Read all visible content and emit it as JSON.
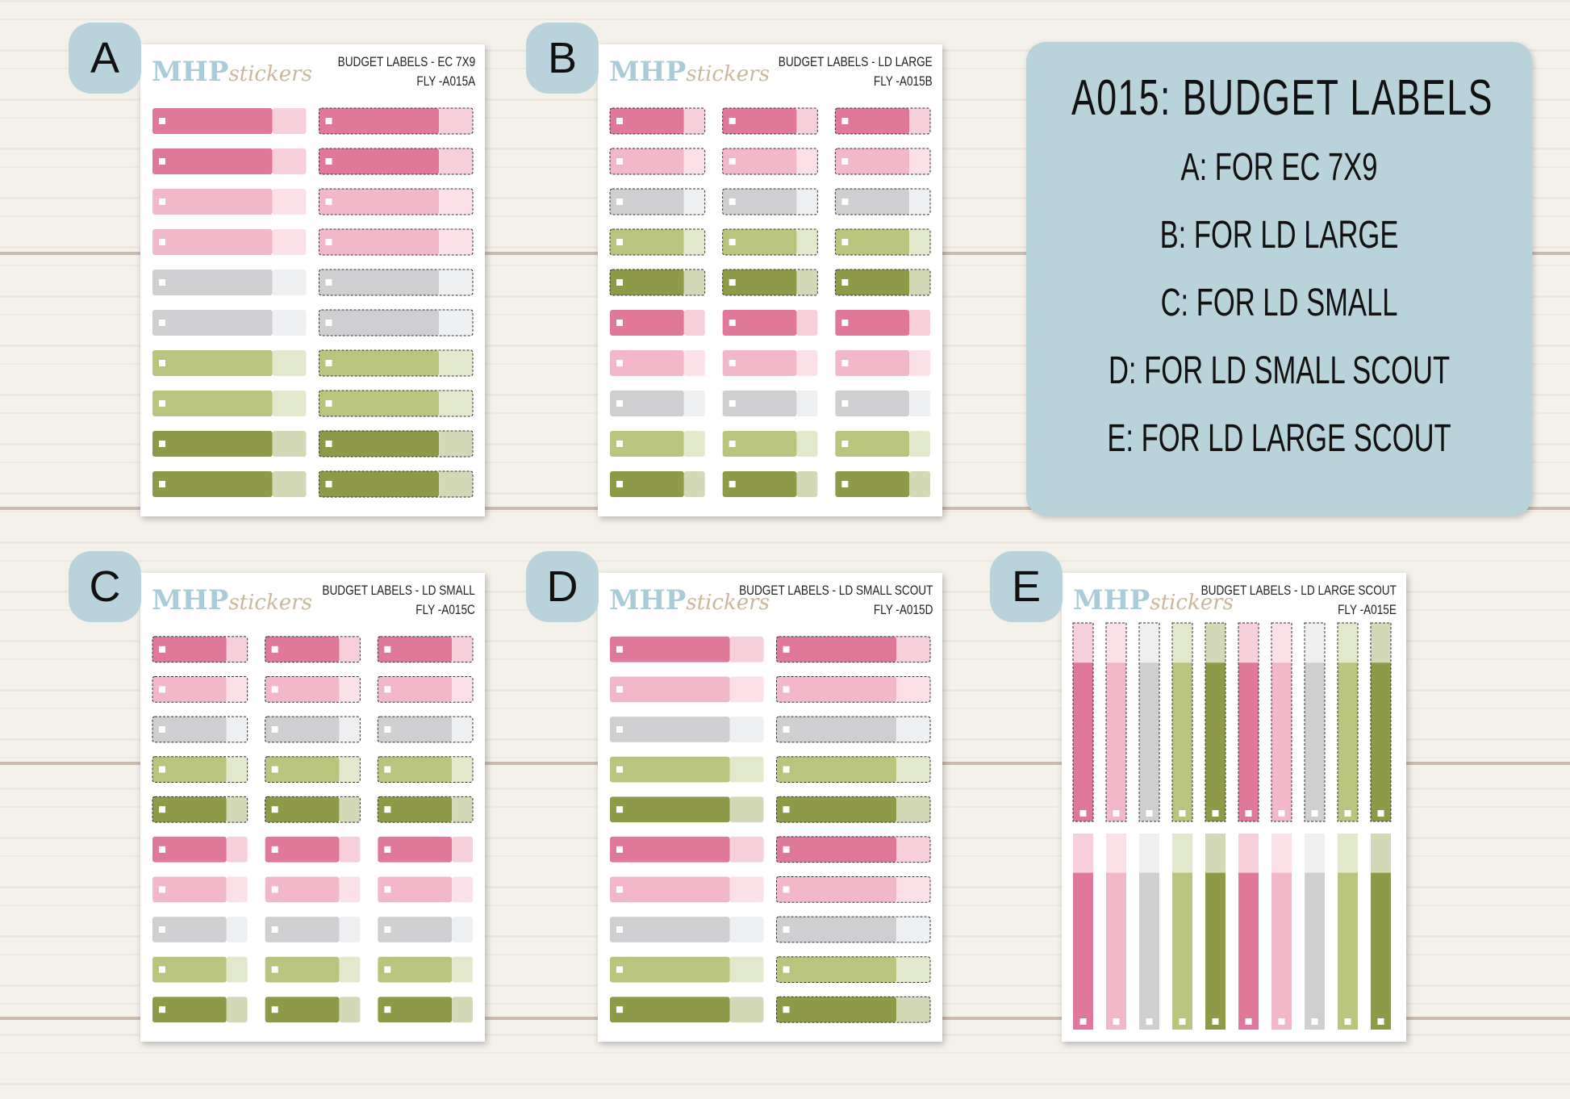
{
  "logo": {
    "brand": "MHP",
    "script": "stickers"
  },
  "sheets": [
    {
      "badge": "A",
      "title": "BUDGET LABELS - EC 7X9",
      "code": "FLY -A015A"
    },
    {
      "badge": "B",
      "title": "BUDGET LABELS - LD LARGE",
      "code": "FLY -A015B"
    },
    {
      "badge": "C",
      "title": "BUDGET LABELS - LD SMALL",
      "code": "FLY -A015C"
    },
    {
      "badge": "D",
      "title": "BUDGET LABELS - LD SMALL SCOUT",
      "code": "FLY -A015D"
    },
    {
      "badge": "E",
      "title": "BUDGET LABELS - LD LARGE SCOUT",
      "code": "FLY -A015E"
    }
  ],
  "panel": {
    "title": "A015: BUDGET LABELS",
    "lines": [
      "A: FOR EC 7X9",
      "B: FOR LD LARGE",
      "C: FOR LD SMALL",
      "D: FOR LD SMALL SCOUT",
      "E: FOR LD LARGE SCOUT"
    ]
  }
}
